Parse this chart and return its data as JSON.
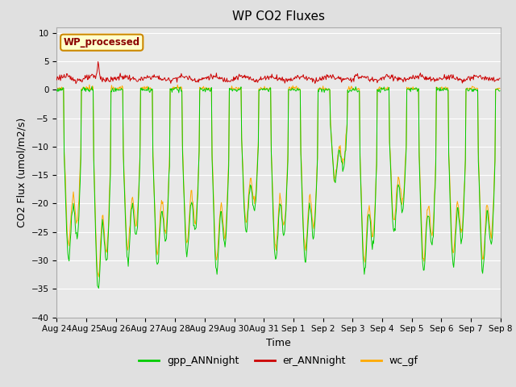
{
  "title": "WP CO2 Fluxes",
  "xlabel": "Time",
  "ylabel_display": "CO2 Flux (umol/m2/s)",
  "ylim": [
    -40,
    11
  ],
  "yticks": [
    -40,
    -35,
    -30,
    -25,
    -20,
    -15,
    -10,
    -5,
    0,
    5,
    10
  ],
  "inset_label": "WP_processed",
  "inset_label_color": "#8b0000",
  "inset_bg": "#ffffcc",
  "inset_edge_color": "#cc8800",
  "fig_bg_color": "#e0e0e0",
  "plot_bg_color": "#e8e8e8",
  "grid_color": "#ffffff",
  "color_gpp": "#00cc00",
  "color_er": "#cc0000",
  "color_wc": "#ffaa00",
  "n_days": 15,
  "pts_per_day": 48,
  "x_tick_labels": [
    "Aug 24",
    "Aug 25",
    "Aug 26",
    "Aug 27",
    "Aug 28",
    "Aug 29",
    "Aug 30",
    "Aug 31",
    "Sep 1",
    "Sep 2",
    "Sep 3",
    "Sep 4",
    "Sep 5",
    "Sep 6",
    "Sep 7",
    "Sep 8"
  ],
  "title_fontsize": 11,
  "axis_label_fontsize": 9,
  "tick_fontsize": 7.5,
  "legend_fontsize": 9,
  "linewidth": 0.7
}
